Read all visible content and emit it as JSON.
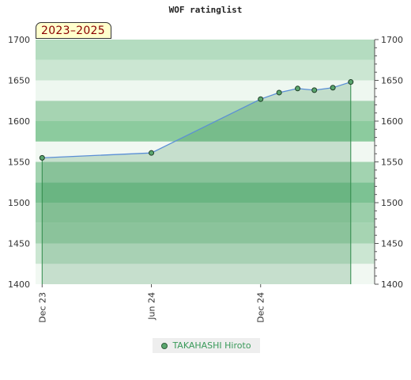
{
  "title": "WOF ratinglist",
  "period_badge": "2023–2025",
  "chart_data": {
    "type": "line",
    "title": "WOF ratinglist",
    "ylim": [
      1400,
      1700
    ],
    "y_ticks": [
      1400,
      1450,
      1500,
      1550,
      1600,
      1650,
      1700
    ],
    "x_ticks": [
      "Dec 23",
      "Jun 24",
      "Dec 24"
    ],
    "x_tick_dates": [
      "2023-12-01",
      "2024-06-01",
      "2024-12-01"
    ],
    "xlim": [
      "2023-11-20",
      "2025-06-10"
    ],
    "grid": "horizontal bands",
    "legend_position": "bottom",
    "series": [
      {
        "name": "TAKAHASHI Hiroto",
        "color": "#5aa66e",
        "points": [
          {
            "x": "2023-12-01",
            "y": 1555
          },
          {
            "x": "2024-06-01",
            "y": 1561
          },
          {
            "x": "2024-12-01",
            "y": 1627
          },
          {
            "x": "2025-01-01",
            "y": 1635
          },
          {
            "x": "2025-02-01",
            "y": 1640
          },
          {
            "x": "2025-03-01",
            "y": 1638
          },
          {
            "x": "2025-04-01",
            "y": 1641
          },
          {
            "x": "2025-05-01",
            "y": 1648
          }
        ]
      }
    ]
  },
  "legend": {
    "label": "TAKAHASHI Hiroto"
  }
}
